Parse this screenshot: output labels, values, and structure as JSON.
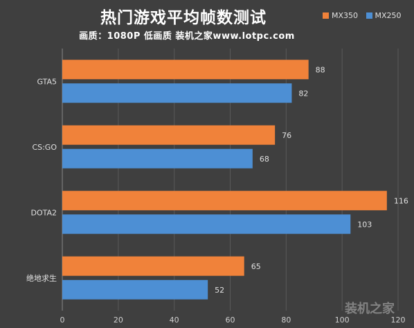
{
  "chart_data": {
    "type": "bar",
    "orientation": "horizontal",
    "title": "热门游戏平均帧数测试",
    "subtitle": "画质：1080P 低画质 装机之家www.lotpc.com",
    "categories": [
      "GTA5",
      "CS:GO",
      "DOTA2",
      "绝地求生"
    ],
    "series": [
      {
        "name": "MX350",
        "color": "#f0823a",
        "values": [
          88,
          76,
          116,
          65
        ]
      },
      {
        "name": "MX250",
        "color": "#4d8fd4",
        "values": [
          82,
          68,
          103,
          52
        ]
      }
    ],
    "xlim": [
      0,
      120
    ],
    "xticks": [
      "0",
      "20",
      "40",
      "60",
      "80",
      "100",
      "120"
    ],
    "grid": true,
    "legend_position": "top-right"
  },
  "legend": {
    "items": [
      "MX350",
      "MX250"
    ]
  },
  "watermark": "装机之家"
}
